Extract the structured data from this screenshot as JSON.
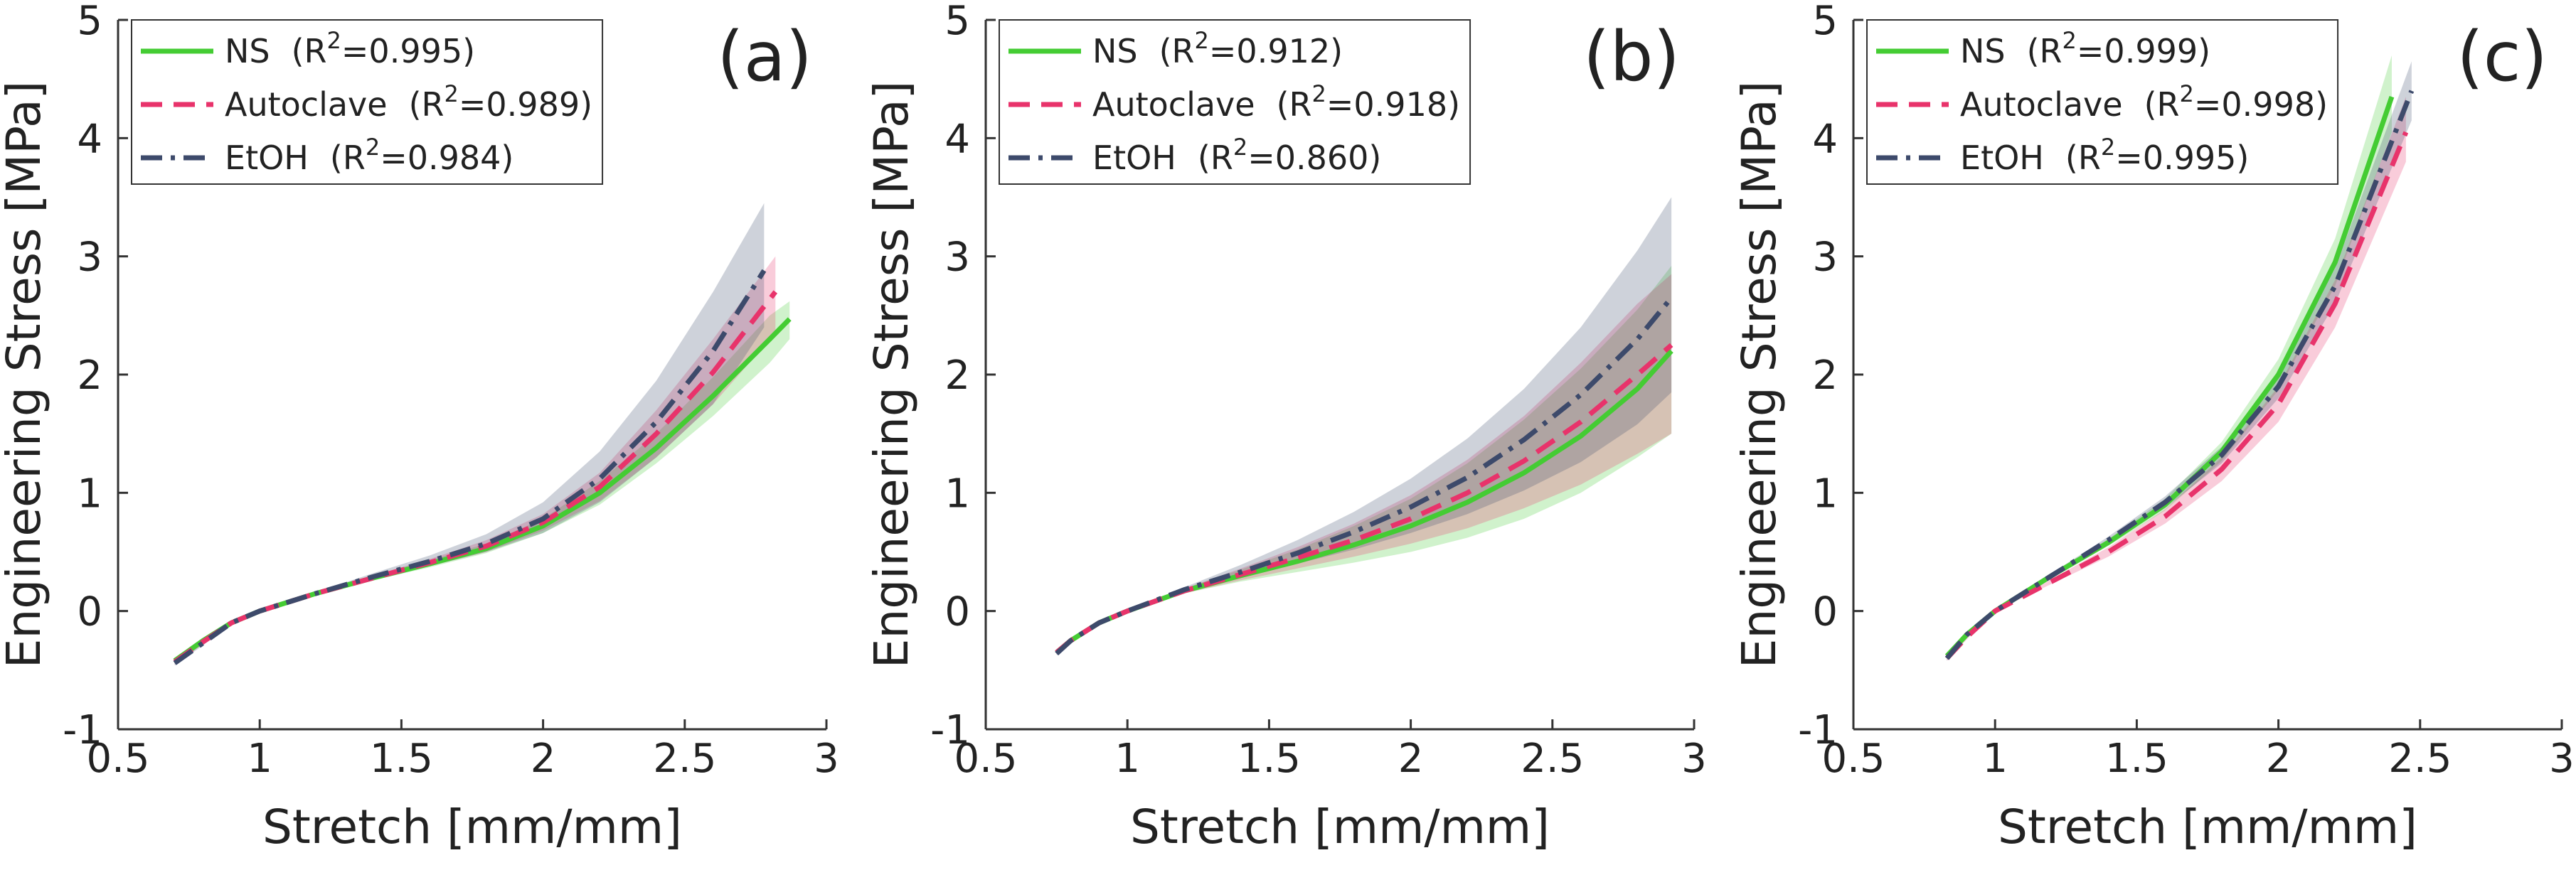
{
  "chart_data": [
    {
      "type": "line",
      "panel_label": "(a)",
      "xlabel": "Stretch [mm/mm]",
      "ylabel": "Engineering Stress [MPa]",
      "xlim": [
        0.5,
        3
      ],
      "ylim": [
        -1,
        5
      ],
      "xticks": [
        0.5,
        1,
        1.5,
        2,
        2.5,
        3
      ],
      "yticks": [
        -1,
        0,
        1,
        2,
        3,
        4,
        5
      ],
      "legend": "upper left",
      "series": [
        {
          "name": "NS",
          "color": "#44cc33",
          "style": "solid",
          "r2": {
            "base": "(R",
            "sup": "2",
            "rest": "=0.995)"
          },
          "x": [
            0.7,
            0.8,
            0.9,
            1,
            1.2,
            1.4,
            1.6,
            1.8,
            2,
            2.2,
            2.4,
            2.6,
            2.8,
            2.87
          ],
          "values": [
            -0.42,
            -0.25,
            -0.1,
            0,
            0.15,
            0.28,
            0.4,
            0.53,
            0.72,
            1.0,
            1.38,
            1.82,
            2.3,
            2.47
          ],
          "lower": [
            -0.44,
            -0.27,
            -0.11,
            0,
            0.14,
            0.26,
            0.37,
            0.49,
            0.66,
            0.9,
            1.25,
            1.65,
            2.1,
            2.3
          ],
          "upper": [
            -0.4,
            -0.23,
            -0.09,
            0,
            0.16,
            0.3,
            0.43,
            0.57,
            0.78,
            1.1,
            1.5,
            1.98,
            2.5,
            2.62
          ]
        },
        {
          "name": "Autoclave",
          "color": "#e8336b",
          "style": "dashed",
          "r2": {
            "base": "(R",
            "sup": "2",
            "rest": "=0.989)"
          },
          "x": [
            0.7,
            0.8,
            0.9,
            1,
            1.2,
            1.4,
            1.6,
            1.8,
            2,
            2.2,
            2.4,
            2.6,
            2.82
          ],
          "values": [
            -0.43,
            -0.26,
            -0.1,
            0,
            0.15,
            0.28,
            0.41,
            0.55,
            0.75,
            1.05,
            1.5,
            2.02,
            2.7
          ],
          "lower": [
            -0.45,
            -0.28,
            -0.11,
            0,
            0.14,
            0.26,
            0.38,
            0.5,
            0.68,
            0.93,
            1.3,
            1.75,
            2.35
          ],
          "upper": [
            -0.41,
            -0.24,
            -0.09,
            0,
            0.16,
            0.3,
            0.44,
            0.6,
            0.82,
            1.17,
            1.7,
            2.3,
            3.0
          ]
        },
        {
          "name": "EtOH",
          "color": "#3d4a6b",
          "style": "dashdot",
          "r2": {
            "base": "(R",
            "sup": "2",
            "rest": "=0.984)"
          },
          "x": [
            0.7,
            0.8,
            0.9,
            1,
            1.2,
            1.4,
            1.6,
            1.8,
            2,
            2.2,
            2.4,
            2.6,
            2.78
          ],
          "values": [
            -0.44,
            -0.27,
            -0.1,
            0,
            0.15,
            0.29,
            0.42,
            0.57,
            0.78,
            1.12,
            1.6,
            2.2,
            2.88
          ],
          "lower": [
            -0.46,
            -0.29,
            -0.11,
            0,
            0.14,
            0.26,
            0.38,
            0.5,
            0.66,
            0.92,
            1.3,
            1.75,
            2.4
          ],
          "upper": [
            -0.42,
            -0.25,
            -0.09,
            0,
            0.16,
            0.32,
            0.47,
            0.65,
            0.92,
            1.35,
            1.95,
            2.7,
            3.45
          ]
        }
      ]
    },
    {
      "type": "line",
      "panel_label": "(b)",
      "xlabel": "Stretch [mm/mm]",
      "ylabel": "Engineering Stress [MPa]",
      "xlim": [
        0.5,
        3
      ],
      "ylim": [
        -1,
        5
      ],
      "xticks": [
        0.5,
        1,
        1.5,
        2,
        2.5,
        3
      ],
      "yticks": [
        -1,
        0,
        1,
        2,
        3,
        4,
        5
      ],
      "legend": "upper left",
      "series": [
        {
          "name": "NS",
          "color": "#44cc33",
          "style": "solid",
          "r2": {
            "base": "(R",
            "sup": "2",
            "rest": "=0.912)"
          },
          "x": [
            0.75,
            0.8,
            0.9,
            1,
            1.2,
            1.4,
            1.6,
            1.8,
            2,
            2.2,
            2.4,
            2.6,
            2.8,
            2.92
          ],
          "values": [
            -0.35,
            -0.25,
            -0.1,
            0,
            0.17,
            0.3,
            0.42,
            0.56,
            0.72,
            0.92,
            1.17,
            1.48,
            1.88,
            2.2
          ],
          "lower": [
            -0.36,
            -0.26,
            -0.11,
            0,
            0.15,
            0.25,
            0.33,
            0.41,
            0.5,
            0.62,
            0.78,
            1.0,
            1.3,
            1.5
          ],
          "upper": [
            -0.34,
            -0.24,
            -0.09,
            0,
            0.19,
            0.35,
            0.52,
            0.72,
            0.95,
            1.25,
            1.62,
            2.05,
            2.55,
            2.92
          ]
        },
        {
          "name": "Autoclave",
          "color": "#e8336b",
          "style": "dashed",
          "r2": {
            "base": "(R",
            "sup": "2",
            "rest": "=0.918)"
          },
          "x": [
            0.75,
            0.8,
            0.9,
            1,
            1.2,
            1.4,
            1.6,
            1.8,
            2,
            2.2,
            2.4,
            2.6,
            2.8,
            2.92
          ],
          "values": [
            -0.35,
            -0.25,
            -0.1,
            0,
            0.17,
            0.31,
            0.45,
            0.6,
            0.78,
            1.0,
            1.27,
            1.6,
            2.0,
            2.25
          ],
          "lower": [
            -0.36,
            -0.26,
            -0.11,
            0,
            0.15,
            0.26,
            0.36,
            0.46,
            0.57,
            0.7,
            0.87,
            1.07,
            1.33,
            1.5
          ],
          "upper": [
            -0.34,
            -0.24,
            -0.09,
            0,
            0.19,
            0.36,
            0.54,
            0.74,
            0.98,
            1.28,
            1.65,
            2.1,
            2.6,
            2.85
          ]
        },
        {
          "name": "EtOH",
          "color": "#3d4a6b",
          "style": "dashdot",
          "r2": {
            "base": "(R",
            "sup": "2",
            "rest": "=0.860)"
          },
          "x": [
            0.75,
            0.8,
            0.9,
            1,
            1.2,
            1.4,
            1.6,
            1.8,
            2,
            2.2,
            2.4,
            2.6,
            2.8,
            2.92
          ],
          "values": [
            -0.36,
            -0.25,
            -0.1,
            0,
            0.18,
            0.33,
            0.49,
            0.67,
            0.88,
            1.13,
            1.45,
            1.83,
            2.3,
            2.65
          ],
          "lower": [
            -0.37,
            -0.26,
            -0.11,
            0,
            0.16,
            0.28,
            0.4,
            0.52,
            0.66,
            0.82,
            1.02,
            1.26,
            1.58,
            1.85
          ],
          "upper": [
            -0.35,
            -0.24,
            -0.09,
            0,
            0.2,
            0.39,
            0.6,
            0.84,
            1.12,
            1.46,
            1.88,
            2.4,
            3.05,
            3.5
          ]
        }
      ]
    },
    {
      "type": "line",
      "panel_label": "(c)",
      "xlabel": "Stretch [mm/mm]",
      "ylabel": "Engineering Stress [MPa]",
      "xlim": [
        0.5,
        3
      ],
      "ylim": [
        -1,
        5
      ],
      "xticks": [
        0.5,
        1,
        1.5,
        2,
        2.5,
        3
      ],
      "yticks": [
        -1,
        0,
        1,
        2,
        3,
        4,
        5
      ],
      "legend": "upper left",
      "series": [
        {
          "name": "NS",
          "color": "#44cc33",
          "style": "solid",
          "r2": {
            "base": "(R",
            "sup": "2",
            "rest": "=0.999)"
          },
          "x": [
            0.83,
            0.9,
            1,
            1.2,
            1.4,
            1.6,
            1.8,
            2,
            2.2,
            2.4
          ],
          "values": [
            -0.38,
            -0.2,
            0,
            0.3,
            0.58,
            0.9,
            1.35,
            2.0,
            2.95,
            4.35
          ],
          "lower": [
            -0.4,
            -0.21,
            0,
            0.28,
            0.55,
            0.85,
            1.27,
            1.87,
            2.75,
            4.05
          ],
          "upper": [
            -0.36,
            -0.19,
            0,
            0.32,
            0.61,
            0.95,
            1.43,
            2.13,
            3.15,
            4.7
          ]
        },
        {
          "name": "Autoclave",
          "color": "#e8336b",
          "style": "dashed",
          "r2": {
            "base": "(R",
            "sup": "2",
            "rest": "=0.998)"
          },
          "x": [
            0.83,
            0.9,
            1,
            1.2,
            1.4,
            1.6,
            1.8,
            2,
            2.2,
            2.45
          ],
          "values": [
            -0.4,
            -0.22,
            0,
            0.25,
            0.5,
            0.8,
            1.2,
            1.75,
            2.6,
            4.05
          ],
          "lower": [
            -0.42,
            -0.24,
            0,
            0.23,
            0.46,
            0.74,
            1.1,
            1.6,
            2.4,
            3.8
          ],
          "upper": [
            -0.38,
            -0.2,
            0,
            0.27,
            0.54,
            0.86,
            1.3,
            1.9,
            2.8,
            4.35
          ]
        },
        {
          "name": "EtOH",
          "color": "#3d4a6b",
          "style": "dashdot",
          "r2": {
            "base": "(R",
            "sup": "2",
            "rest": "=0.995)"
          },
          "x": [
            0.83,
            0.9,
            1,
            1.2,
            1.4,
            1.6,
            1.8,
            2,
            2.2,
            2.47
          ],
          "values": [
            -0.4,
            -0.2,
            0,
            0.3,
            0.6,
            0.92,
            1.32,
            1.9,
            2.75,
            4.4
          ],
          "lower": [
            -0.42,
            -0.22,
            0,
            0.28,
            0.57,
            0.87,
            1.25,
            1.8,
            2.6,
            4.15
          ],
          "upper": [
            -0.38,
            -0.18,
            0,
            0.32,
            0.63,
            0.97,
            1.39,
            2.0,
            2.9,
            4.65
          ]
        }
      ]
    }
  ]
}
